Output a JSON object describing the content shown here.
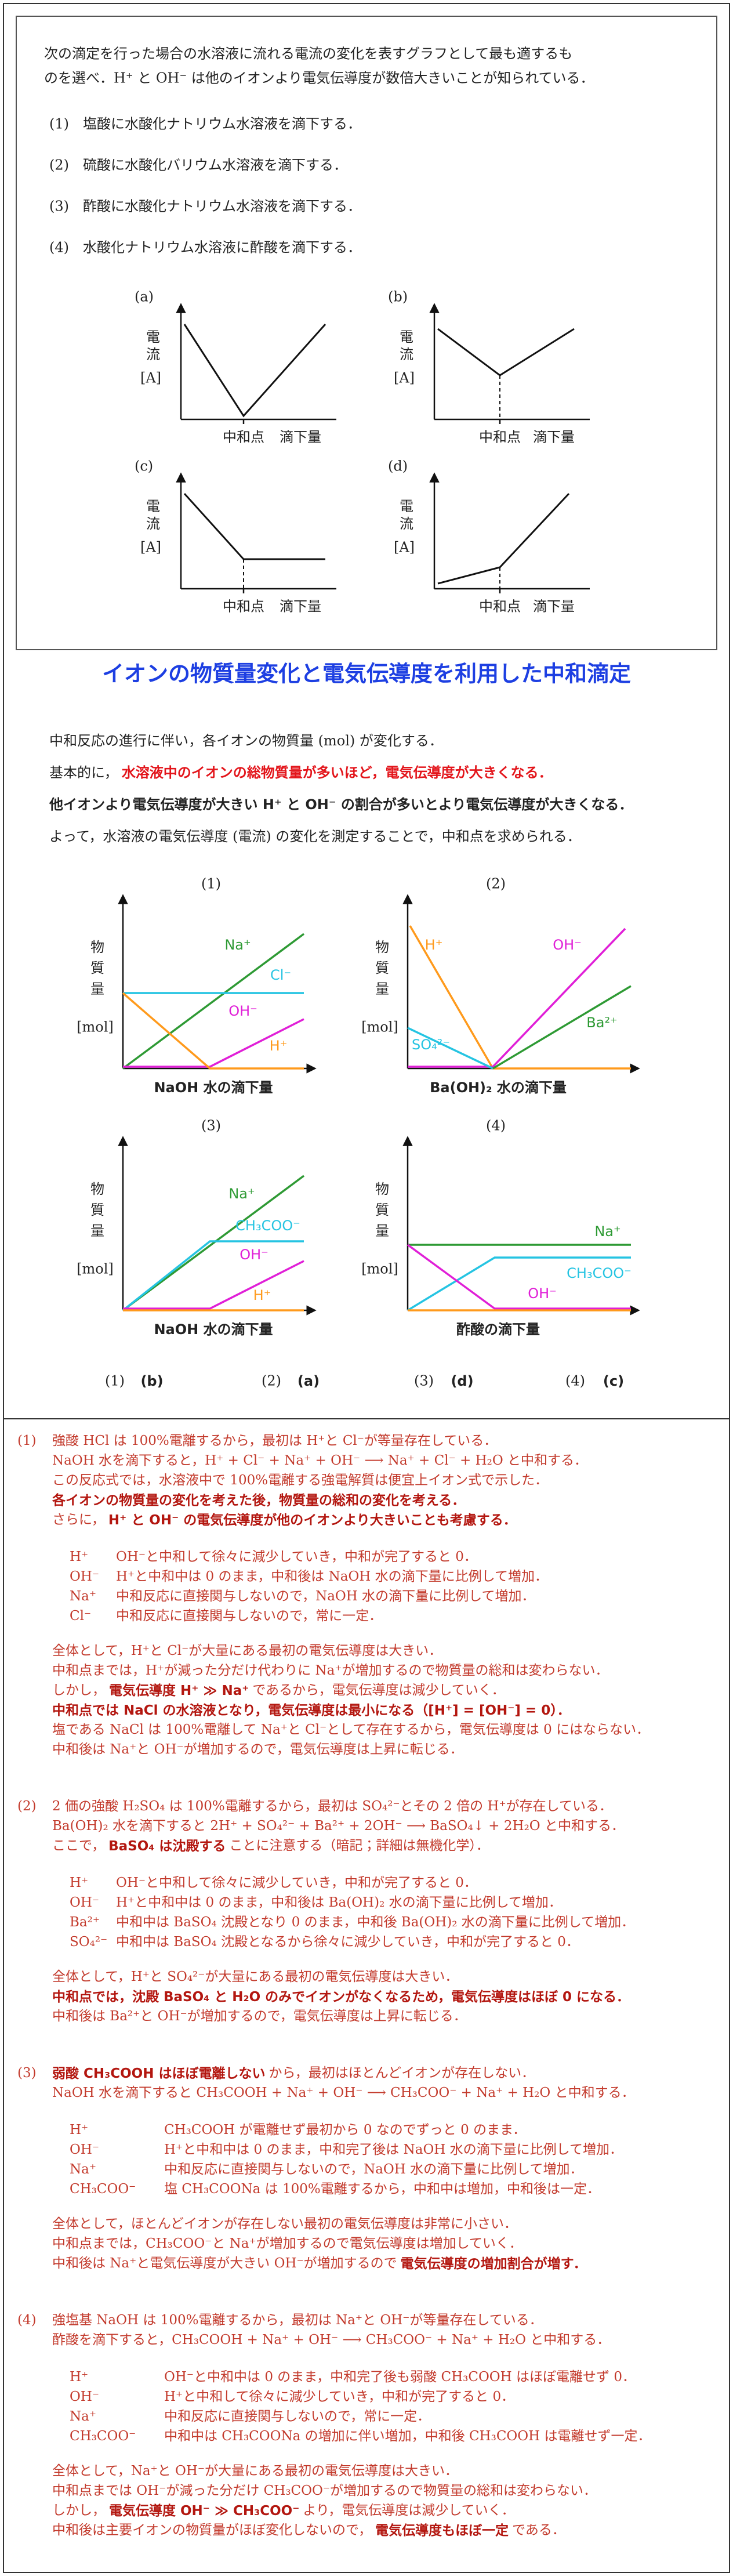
{
  "question": {
    "intro": [
      "次の滴定を行った場合の水溶液に流れる電流の変化を表すグラフとして最も適するも",
      "のを選べ．H⁺ と OH⁻ は他のイオンより電気伝導度が数倍大きいことが知られている．"
    ],
    "items": [
      "(1)　塩酸に水酸化ナトリウム水溶液を滴下する．",
      "(2)　硫酸に水酸化バリウム水溶液を滴下する．",
      "(3)　酢酸に水酸化ナトリウム水溶液を滴下する．",
      "(4)　水酸化ナトリウム水溶液に酢酸を滴下する．"
    ],
    "graph_axis": {
      "y": "電流",
      "unit": "[A]",
      "mark": "中和点",
      "x": "滴下量"
    },
    "graphs": [
      "(a)",
      "(b)",
      "(c)",
      "(d)"
    ]
  },
  "title": "イオンの物質量変化と電気伝導度を利用した中和滴定",
  "overview": [
    [
      "中和反応の進行に伴い，各イオンの物質量 (mol) が変化する．"
    ],
    [
      "基本的に，",
      "水溶液中のイオンの総物質量が多いほど，電気伝導度が大きくなる．"
    ],
    [
      "他イオンより電気伝導度が大きい H⁺ と OH⁻ の割合が多いとより電気伝導度が大きくなる．"
    ],
    [
      "よって，水溶液の電気伝導度 (電流) の変化を測定することで，中和点を求められる．"
    ]
  ],
  "charts": {
    "y_label": "物質量",
    "y_unit": "[mol]",
    "panels": [
      {
        "label": "(1)",
        "x_label": "NaOH 水の滴下量",
        "ions": [
          "Na⁺",
          "Cl⁻",
          "OH⁻",
          "H⁺"
        ]
      },
      {
        "label": "(2)",
        "x_label": "Ba(OH)₂ 水の滴下量",
        "ions": [
          "H⁺",
          "OH⁻",
          "SO₄²⁻",
          "Ba²⁺"
        ]
      },
      {
        "label": "(3)",
        "x_label": "NaOH 水の滴下量",
        "ions": [
          "Na⁺",
          "CH₃COO⁻",
          "OH⁻",
          "H⁺"
        ]
      },
      {
        "label": "(4)",
        "x_label": "酢酸の滴下量",
        "ions": [
          "Na⁺",
          "CH₃COO⁻",
          "OH⁻"
        ]
      }
    ]
  },
  "answers": [
    {
      "question": "(1)",
      "answer": "(b)"
    },
    {
      "question": "(2)",
      "answer": "(a)"
    },
    {
      "question": "(3)",
      "answer": "(d)"
    },
    {
      "question": "(4)",
      "answer": "(c)"
    }
  ],
  "explanation": [
    {
      "number": "(1)",
      "lines": [
        [
          "強酸 HCl は 100%電離するから，最初は H⁺と Cl⁻が等量存在している．"
        ],
        [
          "NaOH 水を滴下すると，H⁺ + Cl⁻ + Na⁺ + OH⁻ ⟶ Na⁺ + Cl⁻ + H₂O と中和する．"
        ],
        [
          "この反応式では，水溶液中で 100%電離する強電解質は便宜上イオン式で示した．"
        ],
        [
          "各イオンの物質量の変化を考えた後，物質量の総和の変化を考える．"
        ],
        [
          "さらに，",
          "H⁺ と OH⁻ の電気伝導度が他のイオンより大きいことも考慮する．"
        ]
      ],
      "ions": [
        [
          "H⁺",
          "OH⁻と中和して徐々に減少していき，中和が完了すると 0．"
        ],
        [
          "OH⁻",
          "H⁺と中和中は 0 のまま，中和後は NaOH 水の滴下量に比例して増加．"
        ],
        [
          "Na⁺",
          "中和反応に直接関与しないので，NaOH 水の滴下量に比例して増加．"
        ],
        [
          "Cl⁻",
          "中和反応に直接関与しないので，常に一定．"
        ]
      ],
      "summary": [
        [
          "全体として，H⁺と Cl⁻が大量にある最初の電気伝導度は大きい．"
        ],
        [
          "中和点までは，H⁺が減った分だけ代わりに Na⁺が増加するので物質量の総和は変わらない．"
        ],
        [
          "しかし，",
          "電気伝導度 H⁺ ≫ Na⁺",
          "であるから，電気伝導度は減少していく．"
        ],
        [
          "中和点では NaCl の水溶液となり，電気伝導度は最小になる（[H⁺] = [OH⁻] = 0）．"
        ],
        [
          "塩である NaCl は 100%電離して Na⁺と Cl⁻として存在するから，電気伝導度は 0 にはならない．"
        ],
        [
          "中和後は Na⁺と OH⁻が増加するので，電気伝導度は上昇に転じる．"
        ]
      ]
    },
    {
      "number": "(2)",
      "lines": [
        [
          "2 価の強酸 H₂SO₄ は 100%電離するから，最初は SO₄²⁻とその 2 倍の H⁺が存在している．"
        ],
        [
          "Ba(OH)₂ 水を滴下すると 2H⁺ + SO₄²⁻ + Ba²⁺ + 2OH⁻ ⟶ BaSO₄↓ + 2H₂O と中和する．"
        ],
        [
          "ここで，",
          "BaSO₄ は沈殿する",
          "ことに注意する（暗記；詳細は無機化学）．"
        ]
      ],
      "ions": [
        [
          "H⁺",
          "OH⁻と中和して徐々に減少していき，中和が完了すると 0．"
        ],
        [
          "OH⁻",
          "H⁺と中和中は 0 のまま，中和後は Ba(OH)₂ 水の滴下量に比例して増加．"
        ],
        [
          "Ba²⁺",
          "中和中は BaSO₄ 沈殿となり 0 のまま，中和後 Ba(OH)₂ 水の滴下量に比例して増加．"
        ],
        [
          "SO₄²⁻",
          "中和中は BaSO₄ 沈殿となるから徐々に減少していき，中和が完了すると 0．"
        ]
      ],
      "summary": [
        [
          "全体として，H⁺と SO₄²⁻が大量にある最初の電気伝導度は大きい．"
        ],
        [
          "中和点では，沈殿 BaSO₄ と H₂O のみでイオンがなくなるため，電気伝導度はほぼ 0 になる．"
        ],
        [
          "中和後は Ba²⁺と OH⁻が増加するので，電気伝導度は上昇に転じる．"
        ]
      ]
    },
    {
      "number": "(3)",
      "lines": [
        [
          "弱酸 CH₃COOH はほぼ電離しない",
          "から，最初はほとんどイオンが存在しない．"
        ],
        [
          "NaOH 水を滴下すると CH₃COOH + Na⁺ + OH⁻ ⟶ CH₃COO⁻ + Na⁺ + H₂O と中和する．"
        ]
      ],
      "ions": [
        [
          "H⁺",
          "CH₃COOH が電離せず最初から 0 なのでずっと 0 のまま．"
        ],
        [
          "OH⁻",
          "H⁺と中和中は 0 のまま，中和完了後は NaOH 水の滴下量に比例して増加．"
        ],
        [
          "Na⁺",
          "中和反応に直接関与しないので，NaOH 水の滴下量に比例して増加．"
        ],
        [
          "CH₃COO⁻",
          "塩 CH₃COONa は 100%電離するから，中和中は増加，中和後は一定．"
        ]
      ],
      "summary": [
        [
          "全体として，ほとんどイオンが存在しない最初の電気伝導度は非常に小さい．"
        ],
        [
          "中和点までは，CH₃COO⁻と Na⁺が増加するので電気伝導度は増加していく．"
        ],
        [
          "中和後は Na⁺と電気伝導度が大きい OH⁻が増加するので",
          "電気伝導度の増加割合が増す．"
        ]
      ]
    },
    {
      "number": "(4)",
      "lines": [
        [
          "強塩基 NaOH は 100%電離するから，最初は Na⁺と OH⁻が等量存在している．"
        ],
        [
          "酢酸を滴下すると，CH₃COOH + Na⁺ + OH⁻ ⟶ CH₃COO⁻ + Na⁺ + H₂O と中和する．"
        ]
      ],
      "ions": [
        [
          "H⁺",
          "OH⁻と中和中は 0 のまま，中和完了後も弱酸 CH₃COOH はほぼ電離せず 0．"
        ],
        [
          "OH⁻",
          "H⁺と中和して徐々に減少していき，中和が完了すると 0．"
        ],
        [
          "Na⁺",
          "中和反応に直接関与しないので，常に一定．"
        ],
        [
          "CH₃COO⁻",
          "中和中は CH₃COONa の増加に伴い増加，中和後 CH₃COOH は電離せず一定．"
        ]
      ],
      "summary": [
        [
          "全体として，Na⁺と OH⁻が大量にある最初の電気伝導度は大きい．"
        ],
        [
          "中和点までは OH⁻が減った分だけ CH₃COO⁻が増加するので物質量の総和は変わらない．"
        ],
        [
          "しかし，",
          "電気伝導度 OH⁻ ≫ CH₃COO⁻",
          "より，電気伝導度は減少していく．"
        ],
        [
          "中和後は主要イオンの物質量がほぼ変化しないので，",
          "電気伝導度もほぼ一定",
          "である．"
        ]
      ]
    }
  ]
}
